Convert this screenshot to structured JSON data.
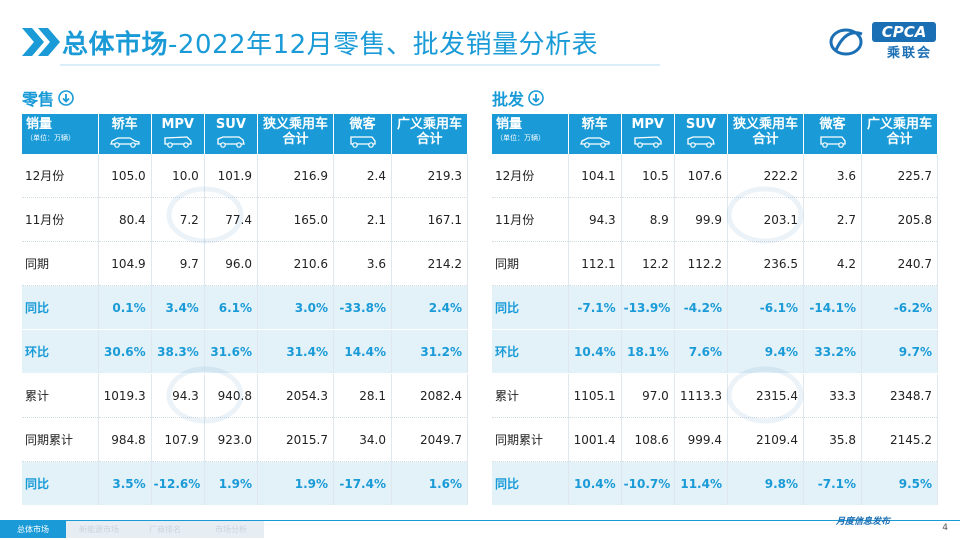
{
  "title": {
    "strong": "总体市场",
    "rest": "-2022年12月零售、批发销量分析表"
  },
  "logo": {
    "abbr": "CPCA",
    "name": "乘联会"
  },
  "columns": {
    "first": "销量",
    "unit": "（单位：万辆）",
    "items": [
      "轿车",
      "MPV",
      "SUV",
      "狭义乘用车\n合计",
      "微客",
      "广义乘用车\n合计"
    ]
  },
  "retail": {
    "title": "零售",
    "rows": [
      {
        "label": "12月份",
        "type": "plain",
        "values": [
          "105.0",
          "10.0",
          "101.9",
          "216.9",
          "2.4",
          "219.3"
        ]
      },
      {
        "label": "11月份",
        "type": "plain",
        "values": [
          "80.4",
          "7.2",
          "77.4",
          "165.0",
          "2.1",
          "167.1"
        ]
      },
      {
        "label": "同期",
        "type": "plain",
        "values": [
          "104.9",
          "9.7",
          "96.0",
          "210.6",
          "3.6",
          "214.2"
        ]
      },
      {
        "label": "同比",
        "type": "pct",
        "values": [
          "0.1%",
          "3.4%",
          "6.1%",
          "3.0%",
          "-33.8%",
          "2.4%"
        ]
      },
      {
        "label": "环比",
        "type": "pct",
        "values": [
          "30.6%",
          "38.3%",
          "31.6%",
          "31.4%",
          "14.4%",
          "31.2%"
        ]
      },
      {
        "label": "累计",
        "type": "plain",
        "values": [
          "1019.3",
          "94.3",
          "940.8",
          "2054.3",
          "28.1",
          "2082.4"
        ]
      },
      {
        "label": "同期累计",
        "type": "plain",
        "values": [
          "984.8",
          "107.9",
          "923.0",
          "2015.7",
          "34.0",
          "2049.7"
        ]
      },
      {
        "label": "同比",
        "type": "pct",
        "values": [
          "3.5%",
          "-12.6%",
          "1.9%",
          "1.9%",
          "-17.4%",
          "1.6%"
        ]
      }
    ]
  },
  "wholesale": {
    "title": "批发",
    "rows": [
      {
        "label": "12月份",
        "type": "plain",
        "values": [
          "104.1",
          "10.5",
          "107.6",
          "222.2",
          "3.6",
          "225.7"
        ]
      },
      {
        "label": "11月份",
        "type": "plain",
        "values": [
          "94.3",
          "8.9",
          "99.9",
          "203.1",
          "2.7",
          "205.8"
        ]
      },
      {
        "label": "同期",
        "type": "plain",
        "values": [
          "112.1",
          "12.2",
          "112.2",
          "236.5",
          "4.2",
          "240.7"
        ]
      },
      {
        "label": "同比",
        "type": "pct",
        "values": [
          "-7.1%",
          "-13.9%",
          "-4.2%",
          "-6.1%",
          "-14.1%",
          "-6.2%"
        ]
      },
      {
        "label": "环比",
        "type": "pct",
        "values": [
          "10.4%",
          "18.1%",
          "7.6%",
          "9.4%",
          "33.2%",
          "9.7%"
        ]
      },
      {
        "label": "累计",
        "type": "plain",
        "values": [
          "1105.1",
          "97.0",
          "1113.3",
          "2315.4",
          "33.3",
          "2348.7"
        ]
      },
      {
        "label": "同期累计",
        "type": "plain",
        "values": [
          "1001.4",
          "108.6",
          "999.4",
          "2109.4",
          "35.8",
          "2145.2"
        ]
      },
      {
        "label": "同比",
        "type": "pct",
        "values": [
          "10.4%",
          "-10.7%",
          "11.4%",
          "9.8%",
          "-7.1%",
          "9.5%"
        ]
      }
    ]
  },
  "footer": {
    "tabs": [
      "总体市场",
      "新能源市场",
      "厂商排名",
      "市场分析"
    ],
    "active_tab": 0,
    "tagline": "月度信息发布",
    "page": "4"
  },
  "colors": {
    "accent": "#1a9bd7",
    "pct_row_bg": "#e3f1f8",
    "logo_blue": "#1a6fb5"
  }
}
